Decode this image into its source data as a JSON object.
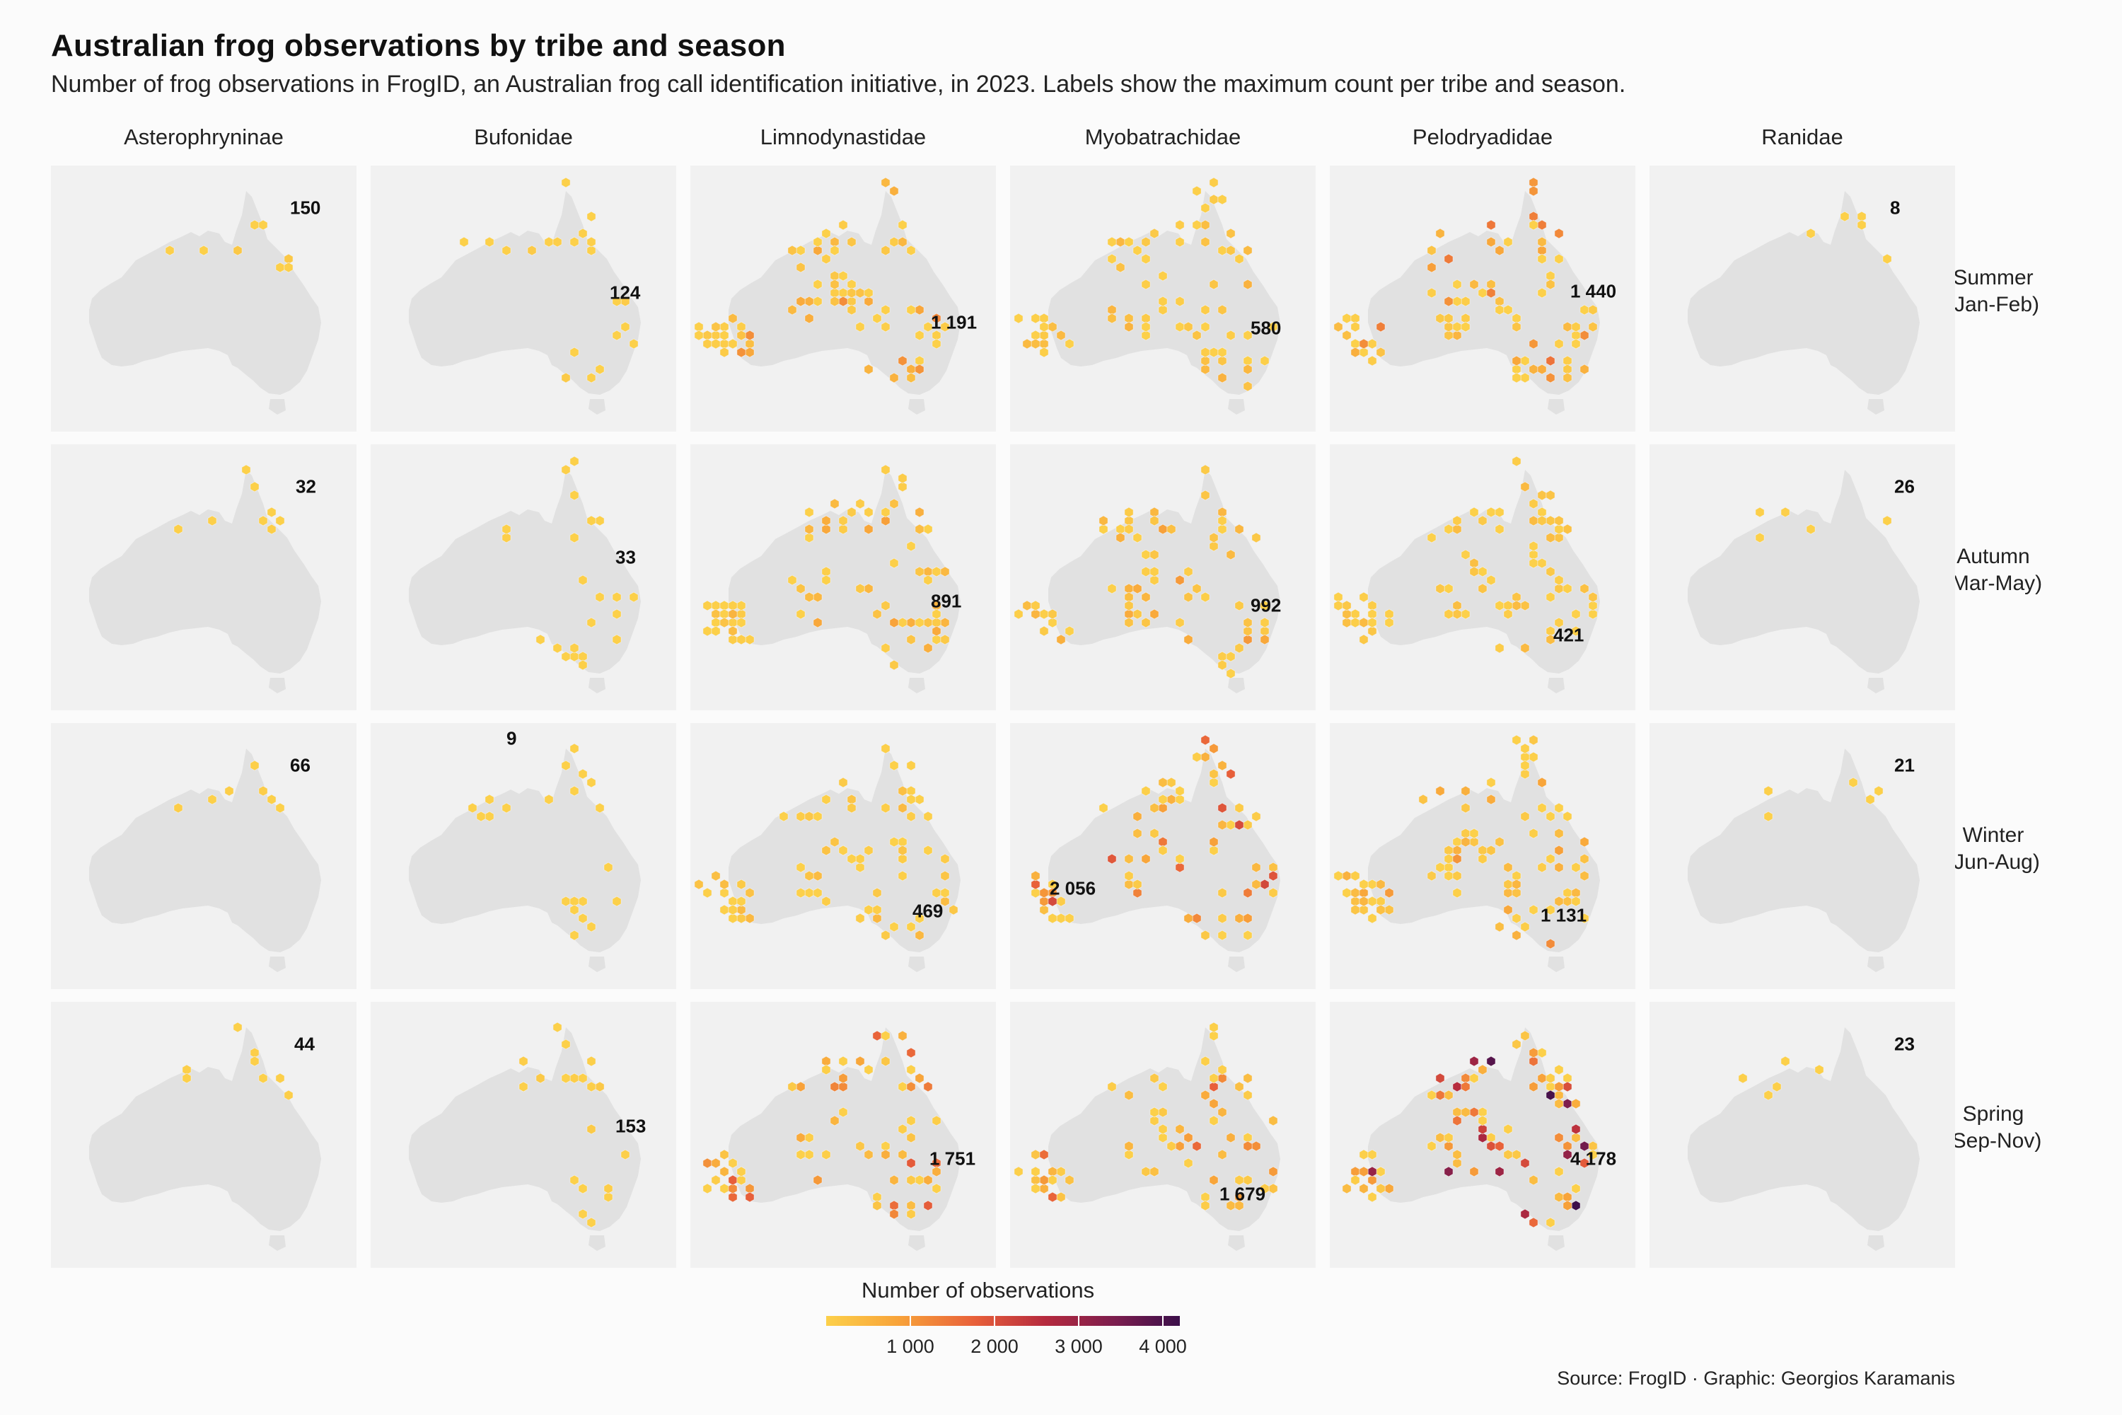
{
  "title": "Australian frog observations by tribe and season",
  "subtitle": "Number of frog observations in FrogID, an Australian frog call identification initiative, in 2023. Labels show the maximum count per tribe and season.",
  "source": "Source: FrogID · Graphic: Georgios Karamanis",
  "legend": {
    "title": "Number of observations",
    "ticks": [
      "1 000",
      "2 000",
      "3 000",
      "4 000"
    ],
    "colors": [
      "#fcd04a",
      "#f8a43a",
      "#e8603a",
      "#b52a3e",
      "#7a1d4e",
      "#3b0f4a"
    ]
  },
  "chart_data": {
    "type": "heatmap",
    "title": "Australian frog observations by tribe and season",
    "x_facets": [
      "Asterophryninae",
      "Bufonidae",
      "Limnodynastidae",
      "Myobatrachidae",
      "Pelodryadidae",
      "Ranidae"
    ],
    "y_facets": [
      "Summer\n(Jan-Feb)",
      "Autumn\n(Mar-May)",
      "Winter\n(Jun-Aug)",
      "Spring\n(Sep-Nov)"
    ],
    "color_range": [
      0,
      4200
    ],
    "max_counts": [
      [
        "150",
        "124",
        "1 191",
        "580",
        "1 440",
        "8"
      ],
      [
        "32",
        "33",
        "891",
        "992",
        "421",
        "26"
      ],
      [
        "66",
        "9",
        "469",
        "2 056",
        "1 131",
        "21"
      ],
      [
        "44",
        "153",
        "1 751",
        "1 679",
        "4 178",
        "23"
      ]
    ],
    "max_values": [
      [
        150,
        124,
        1191,
        580,
        1440,
        8
      ],
      [
        32,
        33,
        891,
        992,
        421,
        26
      ],
      [
        66,
        9,
        469,
        2056,
        1131,
        21
      ],
      [
        44,
        153,
        1751,
        1679,
        4178,
        23
      ]
    ],
    "regions": {
      "far_north_qld": [
        [
          0.14,
          0.1
        ],
        [
          0.16,
          0.12
        ],
        [
          0.15,
          0.15
        ],
        [
          0.17,
          0.18
        ]
      ],
      "qld_coast": [
        [
          0.2,
          0.26
        ],
        [
          0.22,
          0.3
        ],
        [
          0.24,
          0.35
        ],
        [
          0.25,
          0.4
        ],
        [
          0.26,
          0.46
        ],
        [
          0.27,
          0.5
        ]
      ],
      "nsw_coast": [
        [
          0.28,
          0.55
        ],
        [
          0.27,
          0.6
        ],
        [
          0.25,
          0.65
        ],
        [
          0.22,
          0.68
        ],
        [
          0.2,
          0.7
        ]
      ],
      "vic": [
        [
          0.18,
          0.72
        ],
        [
          0.14,
          0.72
        ],
        [
          0.1,
          0.71
        ],
        [
          0.06,
          0.69
        ]
      ],
      "sw_wa": [
        [
          0.02,
          0.62
        ],
        [
          0.03,
          0.67
        ],
        [
          0.05,
          0.7
        ],
        [
          0.08,
          0.7
        ]
      ],
      "top_end": [
        [
          0.0,
          0.16
        ],
        [
          0.02,
          0.14
        ],
        [
          0.05,
          0.15
        ],
        [
          0.08,
          0.13
        ]
      ],
      "kimberley": [
        [
          0.01,
          0.22
        ],
        [
          0.04,
          0.24
        ],
        [
          0.06,
          0.23
        ],
        [
          0.09,
          0.25
        ]
      ]
    }
  }
}
